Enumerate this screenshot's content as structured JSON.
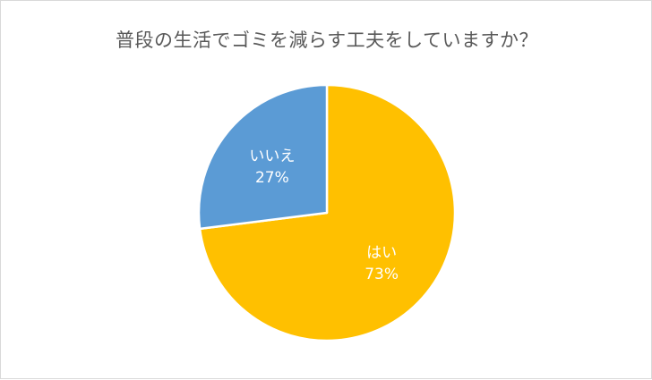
{
  "chart_data": {
    "type": "pie",
    "title": "普段の生活でゴミを減らす工夫をしていますか？",
    "slices": [
      {
        "label": "はい",
        "value": 73,
        "value_label": "73%",
        "color": "#FFC000"
      },
      {
        "label": "いいえ",
        "value": 27,
        "value_label": "27%",
        "color": "#5B9BD5"
      }
    ],
    "start_angle_deg": 0,
    "direction": "clockwise",
    "legend": "none",
    "data_labels": "inside"
  }
}
